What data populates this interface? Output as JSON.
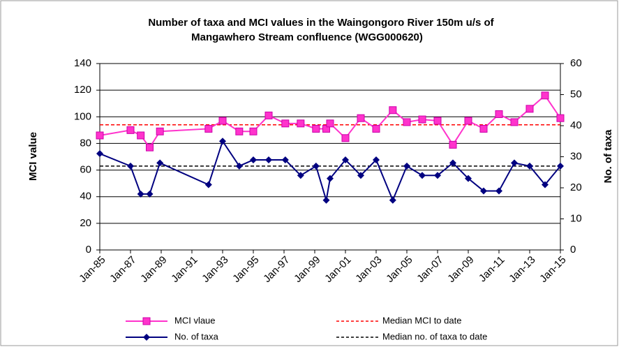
{
  "chart_data": {
    "type": "line",
    "title": [
      "Number of taxa and MCI values in the Waingongoro River 150m  u/s of",
      "Mangawhero Stream confluence  (WGG000620)"
    ],
    "ylabel": "MCI value",
    "y2label": "No. of taxa",
    "x": [
      "1985-01",
      "1987-01",
      "1987-09",
      "1988-04",
      "1988-12",
      "1992-02",
      "1993-01",
      "1994-02",
      "1995-01",
      "1996-01",
      "1997-02",
      "1998-02",
      "1999-02",
      "1999-10",
      "2000-01",
      "2001-01",
      "2002-01",
      "2003-01",
      "2004-02",
      "2005-01",
      "2006-01",
      "2007-01",
      "2008-01",
      "2009-01",
      "2010-01",
      "2011-01",
      "2012-01",
      "2013-01",
      "2014-01",
      "2015-01"
    ],
    "xlim": [
      "1985-01",
      "2015-01"
    ],
    "xticks": [
      {
        "value": "1985-01",
        "label": "Jan-85"
      },
      {
        "value": "1987-01",
        "label": "Jan-87"
      },
      {
        "value": "1989-01",
        "label": "Jan-89"
      },
      {
        "value": "1991-01",
        "label": "Jan-91"
      },
      {
        "value": "1993-01",
        "label": "Jan-93"
      },
      {
        "value": "1995-01",
        "label": "Jan-95"
      },
      {
        "value": "1997-01",
        "label": "Jan-97"
      },
      {
        "value": "1999-01",
        "label": "Jan-99"
      },
      {
        "value": "2001-01",
        "label": "Jan-01"
      },
      {
        "value": "2003-01",
        "label": "Jan-03"
      },
      {
        "value": "2005-01",
        "label": "Jan-05"
      },
      {
        "value": "2007-01",
        "label": "Jan-07"
      },
      {
        "value": "2009-01",
        "label": "Jan-09"
      },
      {
        "value": "2011-01",
        "label": "Jan-11"
      },
      {
        "value": "2013-01",
        "label": "Jan-13"
      },
      {
        "value": "2015-01",
        "label": "Jan-15"
      }
    ],
    "ylim": [
      0,
      140
    ],
    "yticks": [
      0,
      20,
      40,
      60,
      80,
      100,
      120,
      140
    ],
    "y2lim": [
      0,
      60
    ],
    "y2ticks": [
      0,
      10,
      20,
      30,
      40,
      50,
      60
    ],
    "grid": true,
    "series": [
      {
        "name": "MCI vlaue",
        "color": "#ff33cc",
        "marker": "square",
        "axis": "y",
        "values": [
          86,
          90,
          86,
          77,
          89,
          91,
          97,
          89,
          89,
          101,
          95,
          95,
          91,
          91,
          95,
          84,
          99,
          91,
          105,
          96,
          98,
          97,
          79,
          97,
          91,
          102,
          96,
          106,
          116,
          99
        ]
      },
      {
        "name": "No. of taxa",
        "color": "#000080",
        "marker": "diamond",
        "axis": "y2",
        "values": [
          31,
          27,
          18,
          18,
          28,
          21,
          35,
          27,
          29,
          29,
          29,
          24,
          27,
          16,
          23,
          29,
          24,
          29,
          16,
          27,
          24,
          24,
          28,
          23,
          19,
          19,
          28,
          27,
          21,
          27
        ]
      }
    ],
    "reference_lines": [
      {
        "name": "Median MCI to date",
        "color": "#ff0000",
        "value": 94,
        "axis": "y"
      },
      {
        "name": "Median no. of taxa to date",
        "color": "#000000",
        "value": 27,
        "axis": "y2"
      }
    ]
  }
}
